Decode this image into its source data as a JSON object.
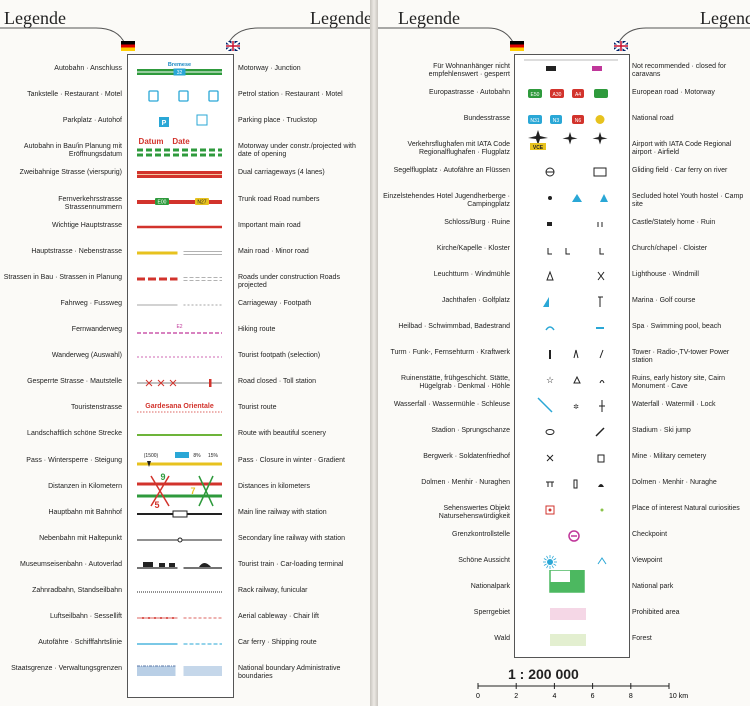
{
  "header": {
    "left_title": "Legende",
    "right_title": "Legende",
    "lang_de": "de-flag-icon",
    "lang_en": "uk-flag-icon"
  },
  "left_rows": [
    {
      "de": "Autobahn · Anschluss",
      "en": "Motorway · Junction",
      "sym": "motorway",
      "sym_text": "Bremese",
      "sym_text2": "32"
    },
    {
      "de": "Tankstelle · Restaurant · Motel",
      "en": "Petrol station · Restaurant · Motel",
      "sym": "services"
    },
    {
      "de": "Parkplatz · Autohof",
      "en": "Parking place · Truckstop",
      "sym": "parking",
      "sym_text": "P"
    },
    {
      "de": "Autobahn in Bau/in Planung mit Eröffnungsdatum",
      "en": "Motorway under constr./projected with date of opening",
      "sym": "motorway-planned",
      "sym_text": "Datum",
      "sym_text2": "Date"
    },
    {
      "de": "Zweibahnige Strasse (vierspurig)",
      "en": "Dual carriageways (4 lanes)",
      "sym": "dual"
    },
    {
      "de": "Fernverkehrsstrasse Strassennummern",
      "en": "Trunk road Road numbers",
      "sym": "trunk",
      "sym_text": "E00",
      "sym_text2": "N27"
    },
    {
      "de": "Wichtige Hauptstrasse",
      "en": "Important main road",
      "sym": "important"
    },
    {
      "de": "Hauptstrasse · Nebenstrasse",
      "en": "Main road · Minor road",
      "sym": "main-minor"
    },
    {
      "de": "Strassen in Bau · Strassen in Planung",
      "en": "Roads under construction Roads projected",
      "sym": "roads-construction"
    },
    {
      "de": "Fahrweg · Fussweg",
      "en": "Carriageway · Footpath",
      "sym": "carriageway"
    },
    {
      "de": "Fernwanderweg",
      "en": "Hiking route",
      "sym": "hiking",
      "sym_text": "E2"
    },
    {
      "de": "Wanderweg (Auswahl)",
      "en": "Tourist footpath (selection)",
      "sym": "footpath"
    },
    {
      "de": "Gesperrte Strasse · Mautstelle",
      "en": "Road closed · Toll station",
      "sym": "closed"
    },
    {
      "de": "Touristenstrasse",
      "en": "Tourist route",
      "sym": "tourist-route",
      "sym_text": "Gardesana Orientale"
    },
    {
      "de": "Landschaftlich schöne Strecke",
      "en": "Route with beautiful scenery",
      "sym": "scenic"
    },
    {
      "de": "Pass · Wintersperre · Steigung",
      "en": "Pass · Closure in winter · Gradient",
      "sym": "pass",
      "sym_text": "(1500)",
      "sym_text2": "8%",
      "sym_text3": "15%"
    },
    {
      "de": "Distanzen in Kilometern",
      "en": "Distances in kilometers",
      "sym": "distances",
      "sym_text": "9",
      "sym_text2": "7",
      "sym_text3": "5"
    },
    {
      "de": "Hauptbahn mit Bahnhof",
      "en": "Main line railway with station",
      "sym": "mainrail"
    },
    {
      "de": "Nebenbahn mit Haltepunkt",
      "en": "Secondary line railway with station",
      "sym": "secrail"
    },
    {
      "de": "Museumseisenbahn · Autoverlad",
      "en": "Tourist train · Car-loading terminal",
      "sym": "museum-rail"
    },
    {
      "de": "Zahnradbahn, Standseilbahn",
      "en": "Rack railway, funicular",
      "sym": "rack"
    },
    {
      "de": "Luftseilbahn · Sessellift",
      "en": "Aerial cableway · Chair lift",
      "sym": "cableway"
    },
    {
      "de": "Autofähre · Schifffahrtslinie",
      "en": "Car ferry · Shipping route",
      "sym": "ferry"
    },
    {
      "de": "Staatsgrenze · Verwaltungsgrenzen",
      "en": "National boundary Administrative boundaries",
      "sym": "boundary"
    }
  ],
  "right_rows": [
    {
      "de": "Für Wohnanhänger nicht empfehlenswert · gesperrt",
      "en": "Not recommended · closed for caravans",
      "sym": "caravan"
    },
    {
      "de": "Europastrasse · Autobahn",
      "en": "European road · Motorway",
      "sym": "euro-road",
      "sym_text": "E50",
      "sym_text2": "A30",
      "sym_text3": "A4"
    },
    {
      "de": "Bundesstrasse",
      "en": "National road",
      "sym": "national-road",
      "sym_text": "N31",
      "sym_text2": "N3",
      "sym_text3": "N6"
    },
    {
      "de": "Verkehrsflughafen mit IATA Code Regionalflughafen · Flugplatz",
      "en": "Airport with IATA Code Regional airport · Airfield",
      "sym": "airport",
      "sym_text": "VCE"
    },
    {
      "de": "Segelflugplatz · Autofähre an Flüssen",
      "en": "Gliding field · Car ferry on river",
      "sym": "gliding"
    },
    {
      "de": "Einzelstehendes Hotel Jugendherberge · Campingplatz",
      "en": "Secluded hotel Youth hostel · Camp site",
      "sym": "hotel"
    },
    {
      "de": "Schloss/Burg · Ruine",
      "en": "Castle/Stately home · Ruin",
      "sym": "castle"
    },
    {
      "de": "Kirche/Kapelle · Kloster",
      "en": "Church/chapel · Cloister",
      "sym": "church"
    },
    {
      "de": "Leuchtturm · Windmühle",
      "en": "Lighthouse · Windmill",
      "sym": "lighthouse"
    },
    {
      "de": "Jachthafen · Golfplatz",
      "en": "Marina · Golf course",
      "sym": "marina"
    },
    {
      "de": "Heilbad · Schwimmbad, Badestrand",
      "en": "Spa · Swimming pool, beach",
      "sym": "spa"
    },
    {
      "de": "Turm · Funk-, Fernsehturm · Kraftwerk",
      "en": "Tower · Radio-,TV-tower Power station",
      "sym": "tower"
    },
    {
      "de": "Ruinenstätte, frühgeschicht. Stätte, Hügelgrab · Denkmal · Höhle",
      "en": "Ruins, early history site, Cairn Monument · Cave",
      "sym": "ruins"
    },
    {
      "de": "Wasserfall · Wassermühle · Schleuse",
      "en": "Waterfall · Watermill · Lock",
      "sym": "waterfall"
    },
    {
      "de": "Stadion · Sprungschanze",
      "en": "Stadium · Ski jump",
      "sym": "stadium"
    },
    {
      "de": "Bergwerk · Soldatenfriedhof",
      "en": "Mine · Military cemetery",
      "sym": "mine"
    },
    {
      "de": "Dolmen · Menhir · Nuraghen",
      "en": "Dolmen · Menhir · Nuraghe",
      "sym": "dolmen"
    },
    {
      "de": "Sehenswertes Objekt Natursehenswürdigkeit",
      "en": "Place of interest Natural curiosities",
      "sym": "interest"
    },
    {
      "de": "Grenzkontrollstelle",
      "en": "Checkpoint",
      "sym": "checkpoint"
    },
    {
      "de": "Schöne Aussicht",
      "en": "Viewpoint",
      "sym": "viewpoint"
    },
    {
      "de": "Nationalpark",
      "en": "National park",
      "sym": "nationalpark"
    },
    {
      "de": "Sperrgebiet",
      "en": "Prohibited area",
      "sym": "prohibited"
    },
    {
      "de": "Wald",
      "en": "Forest",
      "sym": "forest"
    }
  ],
  "scale": {
    "title": "1 : 200 000",
    "ticks": [
      "0",
      "2",
      "4",
      "6",
      "8",
      "10 km"
    ]
  },
  "colors": {
    "motorway_green": "#2e9a3c",
    "red": "#d2332c",
    "yellow": "#e7c21e",
    "blue": "#2aa7d6",
    "pink": "#c0379a",
    "park_green": "#4cb860"
  }
}
